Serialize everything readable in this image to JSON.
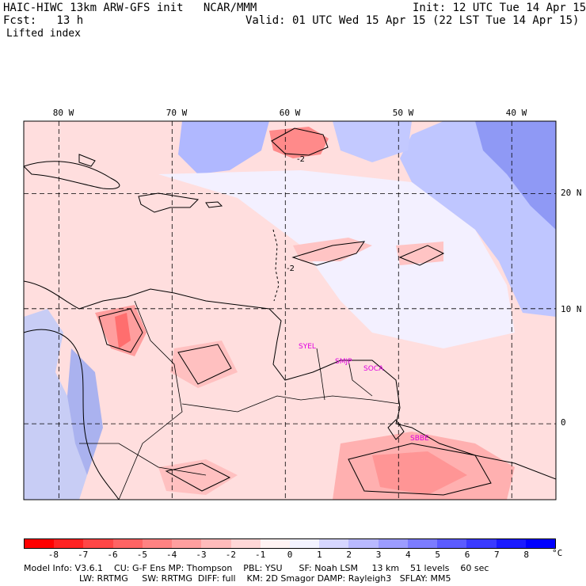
{
  "header": {
    "title": "HAIC-HIWC 13km ARW-GFS init   NCAR/MMM",
    "init": "Init: 12 UTC Tue 14 Apr 15",
    "fcst": "Fcst:   13 h",
    "valid": "Valid: 01 UTC Wed 15 Apr 15 (22 LST Tue 14 Apr 15)",
    "field": "Lifted index"
  },
  "map": {
    "lon_labels": [
      "80 W",
      "70 W",
      "60 W",
      "50 W",
      "40 W"
    ],
    "lat_labels": [
      "20 N",
      "10 N",
      "0"
    ],
    "grid_lons": [
      -80,
      -70,
      -60,
      -50,
      -40
    ],
    "grid_lats": [
      20,
      10,
      0
    ],
    "extent": {
      "lon_min": -83.1,
      "lon_max": -36.1,
      "lat_min": -6.6,
      "lat_max": 26.3
    },
    "sites": [
      "SYEL",
      "SMJP",
      "SOCA",
      "SBBE"
    ],
    "contour_labels": [
      "-2",
      "-2"
    ]
  },
  "colorbar": {
    "labels": [
      "-8",
      "-7",
      "-6",
      "-5",
      "-4",
      "-3",
      "-2",
      "-1",
      "0",
      "1",
      "2",
      "3",
      "4",
      "5",
      "6",
      "7",
      "8"
    ],
    "unit": "°C",
    "colors": [
      "#ff0000",
      "#ff2323",
      "#ff4646",
      "#ff6464",
      "#ff8282",
      "#ff9f9f",
      "#ffbbbb",
      "#ffd7d7",
      "#fff3f3",
      "#f3f3ff",
      "#d6d6ff",
      "#b9b9ff",
      "#9c9cff",
      "#7c7cff",
      "#5b5bff",
      "#3a3aff",
      "#1a1aff",
      "#0000ff"
    ]
  },
  "footer": {
    "line1": "Model Info: V3.6.1    CU: G-F Ens MP: Thompson    PBL: YSU      SF: Noah LSM     13 km    51 levels    60 sec",
    "line2": "LW: RRTMG     SW: RRTMG  DIFF: full    KM: 2D Smagor DAMP: Rayleigh3   SFLAY: MM5"
  }
}
